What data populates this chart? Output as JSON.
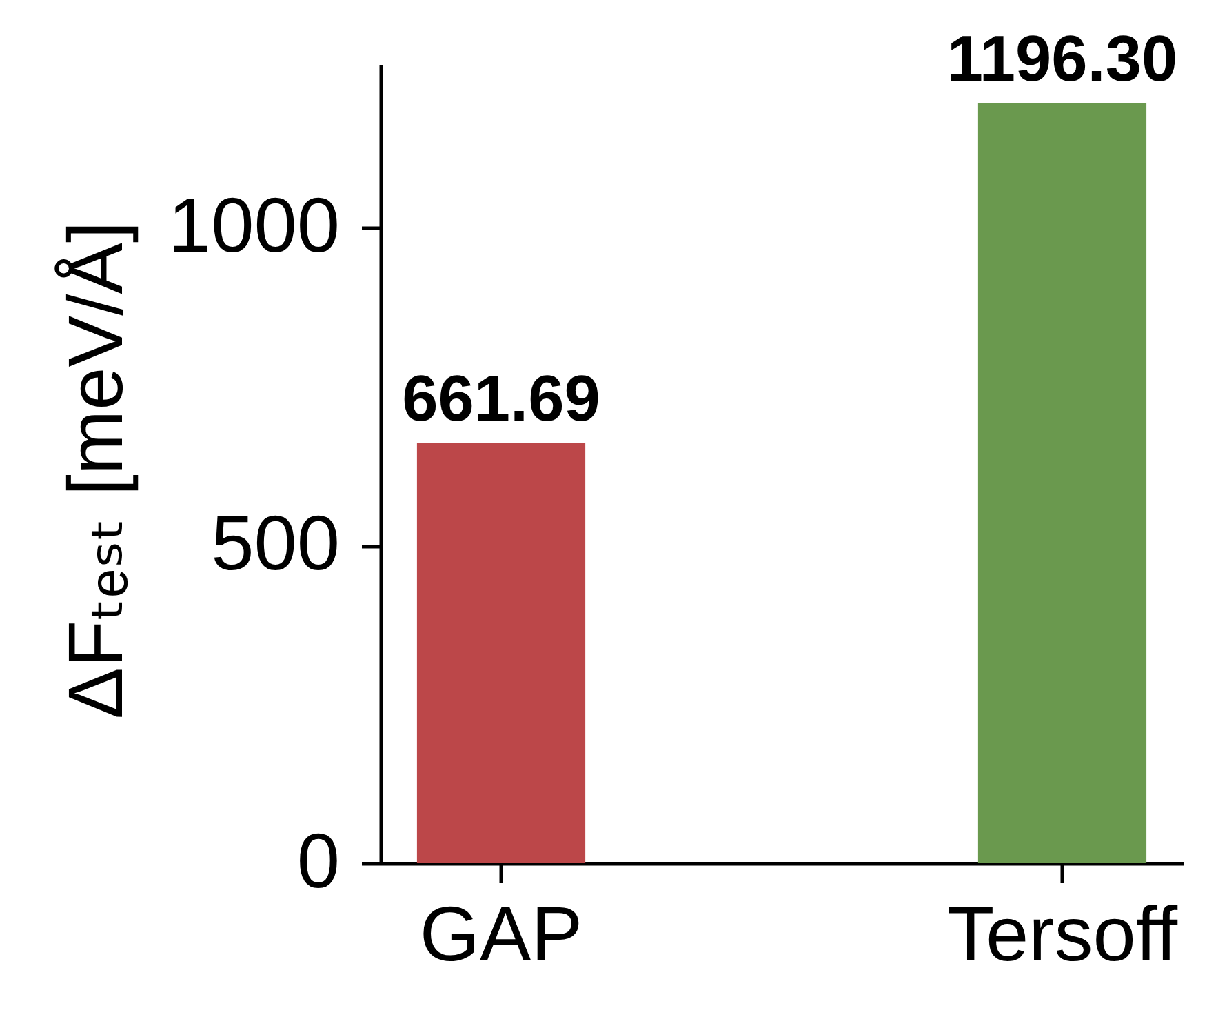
{
  "chart_data": {
    "type": "bar",
    "categories": [
      "GAP",
      "Tersoff"
    ],
    "values": [
      661.69,
      1196.3
    ],
    "colors": [
      "#bc4749",
      "#6a994e"
    ],
    "ylabel": "ΔFₜₑₛₜ [meV/Å]",
    "ylim": [
      0,
      1256
    ],
    "yticks": [
      0,
      500,
      1000
    ],
    "value_labels": [
      "661.69",
      "1196.30"
    ],
    "grid": false
  }
}
